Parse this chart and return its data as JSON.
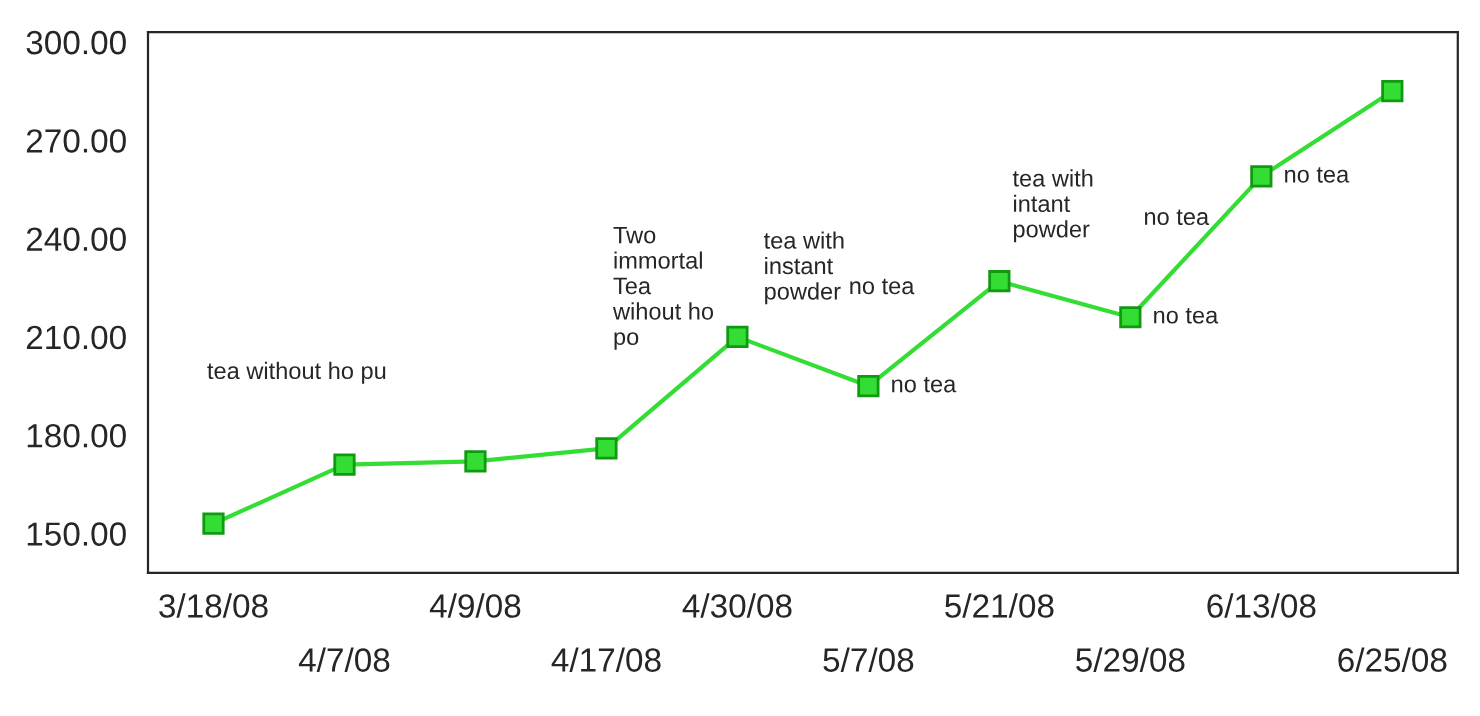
{
  "chart_data": {
    "type": "line",
    "categories": [
      "3/18/08",
      "4/7/08",
      "4/9/08",
      "4/17/08",
      "4/30/08",
      "5/7/08",
      "5/21/08",
      "5/29/08",
      "6/13/08",
      "6/25/08"
    ],
    "series": [
      {
        "color": "#33dd33",
        "values": [
          153,
          171,
          172,
          176,
          210,
          195,
          227,
          216,
          259,
          285
        ]
      }
    ],
    "ylim": [
      138,
      303
    ],
    "yticks": [
      {
        "value": 150,
        "label": "150.00"
      },
      {
        "value": 180,
        "label": "180.00"
      },
      {
        "value": 210,
        "label": "210.00"
      },
      {
        "value": 240,
        "label": "240.00"
      },
      {
        "value": 270,
        "label": "270.00"
      },
      {
        "value": 300,
        "label": "300.00"
      }
    ],
    "marker": "square",
    "line_style": "solid",
    "grid": false,
    "legend": false,
    "annotations": [
      "tea without ho pu",
      "Two\nimmortal\nTea\nwihout ho\npo",
      "tea with\ninstant\npowder",
      "no tea",
      {
        "text": "no tea",
        "x": "5/7/08",
        "y": 195
      },
      "tea with\nintant\npowder",
      "no tea",
      {
        "text": "no tea",
        "x": "5/29/08",
        "y": 216
      },
      {
        "text": "no tea",
        "x": "6/13/08",
        "y": 259
      }
    ]
  }
}
